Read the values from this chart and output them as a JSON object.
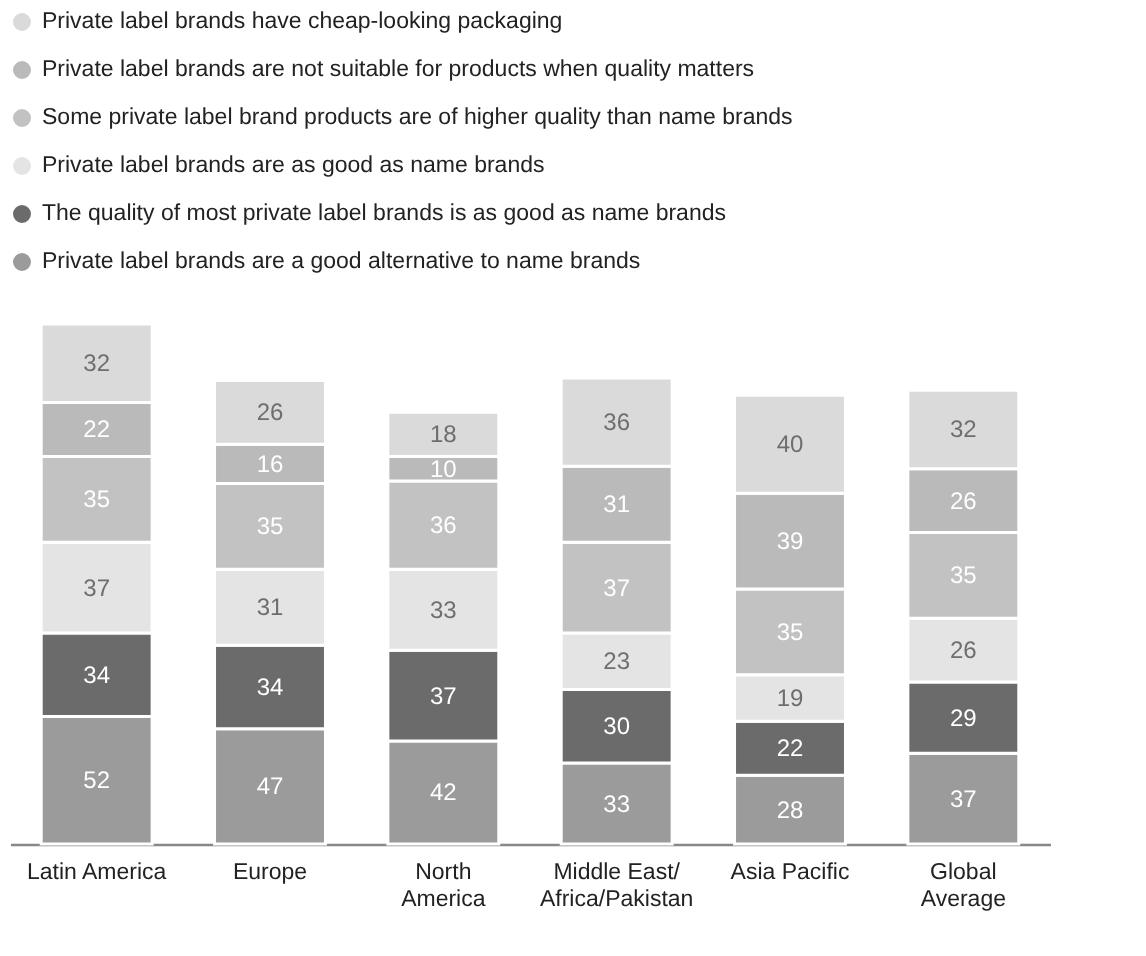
{
  "chart_data": {
    "type": "bar",
    "stacked": true,
    "data_labels": true,
    "legend": "top left",
    "grid": false,
    "categories": [
      "Latin America",
      "Europe",
      "North\nAmerica",
      "Middle East/\nAfrica/Pakistan",
      "Asia Pacific",
      "Global\nAverage"
    ],
    "series": [
      {
        "name": "Private label brands are a good alternative to name brands",
        "color": "#9b9b9b",
        "values": [
          52,
          47,
          42,
          33,
          28,
          37
        ]
      },
      {
        "name": "The quality of most private label brands is as good as name brands",
        "color": "#6b6b6b",
        "values": [
          34,
          34,
          37,
          30,
          22,
          29
        ]
      },
      {
        "name": "Private label brands are as good as name brands",
        "color": "#e4e4e4",
        "values": [
          37,
          31,
          33,
          23,
          19,
          26
        ]
      },
      {
        "name": "Some private label brand products are of higher quality than name brands",
        "color": "#c2c2c2",
        "values": [
          35,
          35,
          36,
          37,
          35,
          35
        ]
      },
      {
        "name": "Private label brands are not suitable for products when quality matters",
        "color": "#bababa",
        "values": [
          22,
          16,
          10,
          31,
          39,
          26
        ]
      },
      {
        "name": "Private label brands have cheap-looking packaging",
        "color": "#dadada",
        "values": [
          32,
          26,
          18,
          36,
          40,
          32
        ]
      }
    ]
  }
}
